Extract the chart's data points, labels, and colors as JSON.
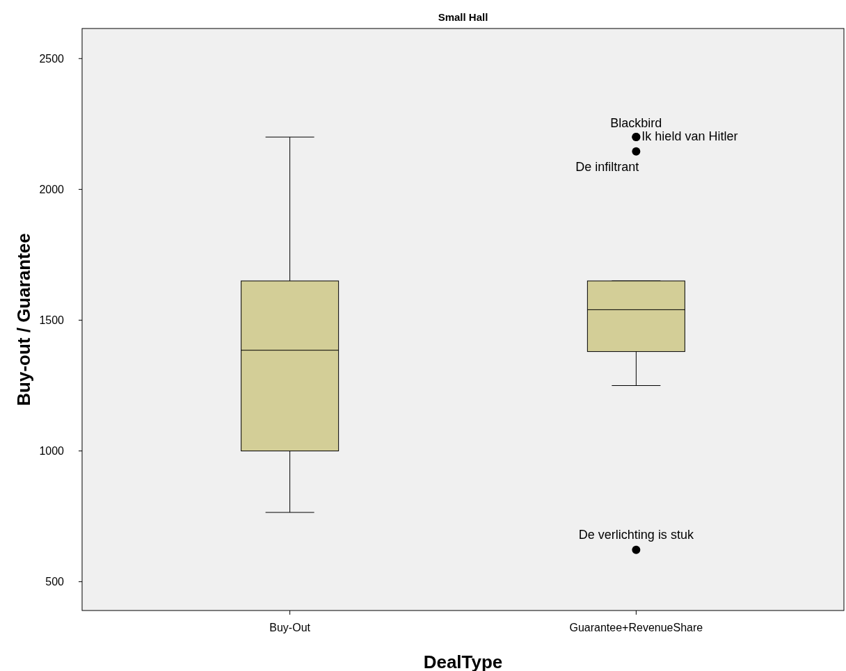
{
  "chart_data": {
    "type": "box",
    "title": "Small Hall",
    "xlabel": "DealType",
    "ylabel": "Buy-out / Guarantee",
    "categories": [
      "Buy-Out",
      "Guarantee+RevenueShare"
    ],
    "boxes": [
      {
        "low": 765,
        "q1": 1000,
        "median": 1385,
        "q3": 1650,
        "high": 2200
      },
      {
        "low": 1250,
        "q1": 1380,
        "median": 1540,
        "q3": 1650,
        "high": 1650
      }
    ],
    "color": "#d3ce97",
    "series": [
      {
        "type": "scatter",
        "color": "#000000",
        "x": [
          "Guarantee+RevenueShare",
          "Guarantee+RevenueShare",
          "Guarantee+RevenueShare",
          "Guarantee+RevenueShare"
        ],
        "values": [
          2200,
          2200,
          2145,
          622
        ],
        "value_labels": [
          "Blackbird",
          "Ik hield van Hitler",
          "De infiltrant",
          "De verlichting is stuk"
        ]
      }
    ],
    "ylim": [
      390,
      2615
    ],
    "yticks": [
      500,
      1000,
      1500,
      2000,
      2500
    ],
    "grid": false
  }
}
